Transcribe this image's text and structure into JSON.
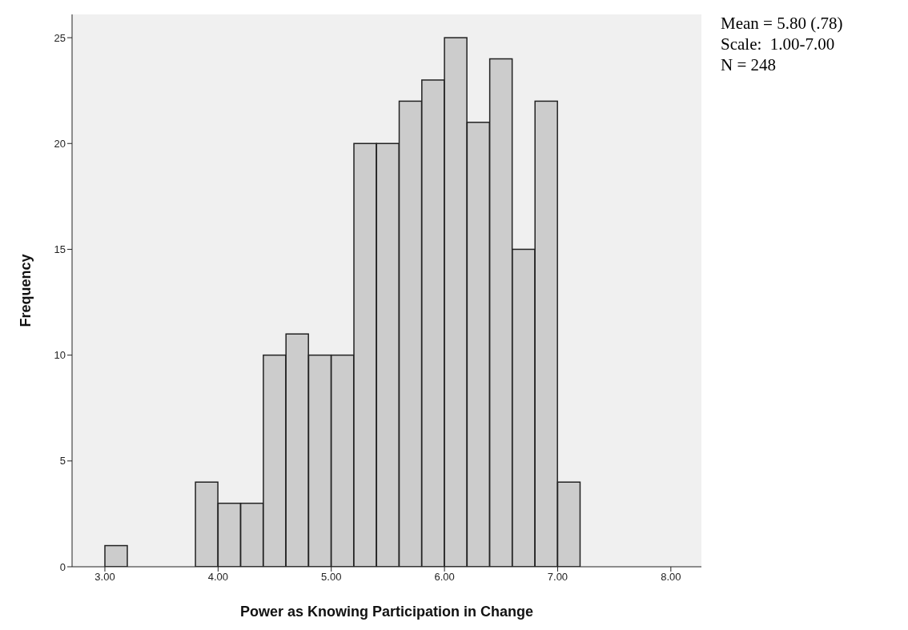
{
  "chart_data": {
    "type": "histogram",
    "xlabel": "Power as Knowing Participation in Change",
    "ylabel": "Frequency",
    "bins": [
      3.0,
      3.2,
      3.4,
      3.6,
      3.8,
      4.0,
      4.2,
      4.4,
      4.6,
      4.8,
      5.0,
      5.2,
      5.4,
      5.6,
      5.8,
      6.0,
      6.2,
      6.4,
      6.6,
      6.8,
      7.0,
      7.2
    ],
    "values": [
      1,
      0,
      0,
      0,
      4,
      3,
      3,
      10,
      11,
      10,
      10,
      20,
      20,
      22,
      23,
      25,
      21,
      24,
      15,
      22,
      4
    ],
    "color": "#cccccc",
    "xlim": [
      2.71,
      8.27
    ],
    "xticks": [
      {
        "value": 3,
        "label": "3.00"
      },
      {
        "value": 4,
        "label": "4.00"
      },
      {
        "value": 5,
        "label": "5.00"
      },
      {
        "value": 6,
        "label": "6.00"
      },
      {
        "value": 7,
        "label": "7.00"
      },
      {
        "value": 8,
        "label": "8.00"
      }
    ],
    "ylim": [
      0,
      26.1
    ],
    "yticks": [
      0,
      5,
      10,
      15,
      20,
      25
    ],
    "annotations": [
      "Mean = 5.80 (.78)",
      "Scale:  1.00-7.00",
      "N = 248"
    ]
  }
}
